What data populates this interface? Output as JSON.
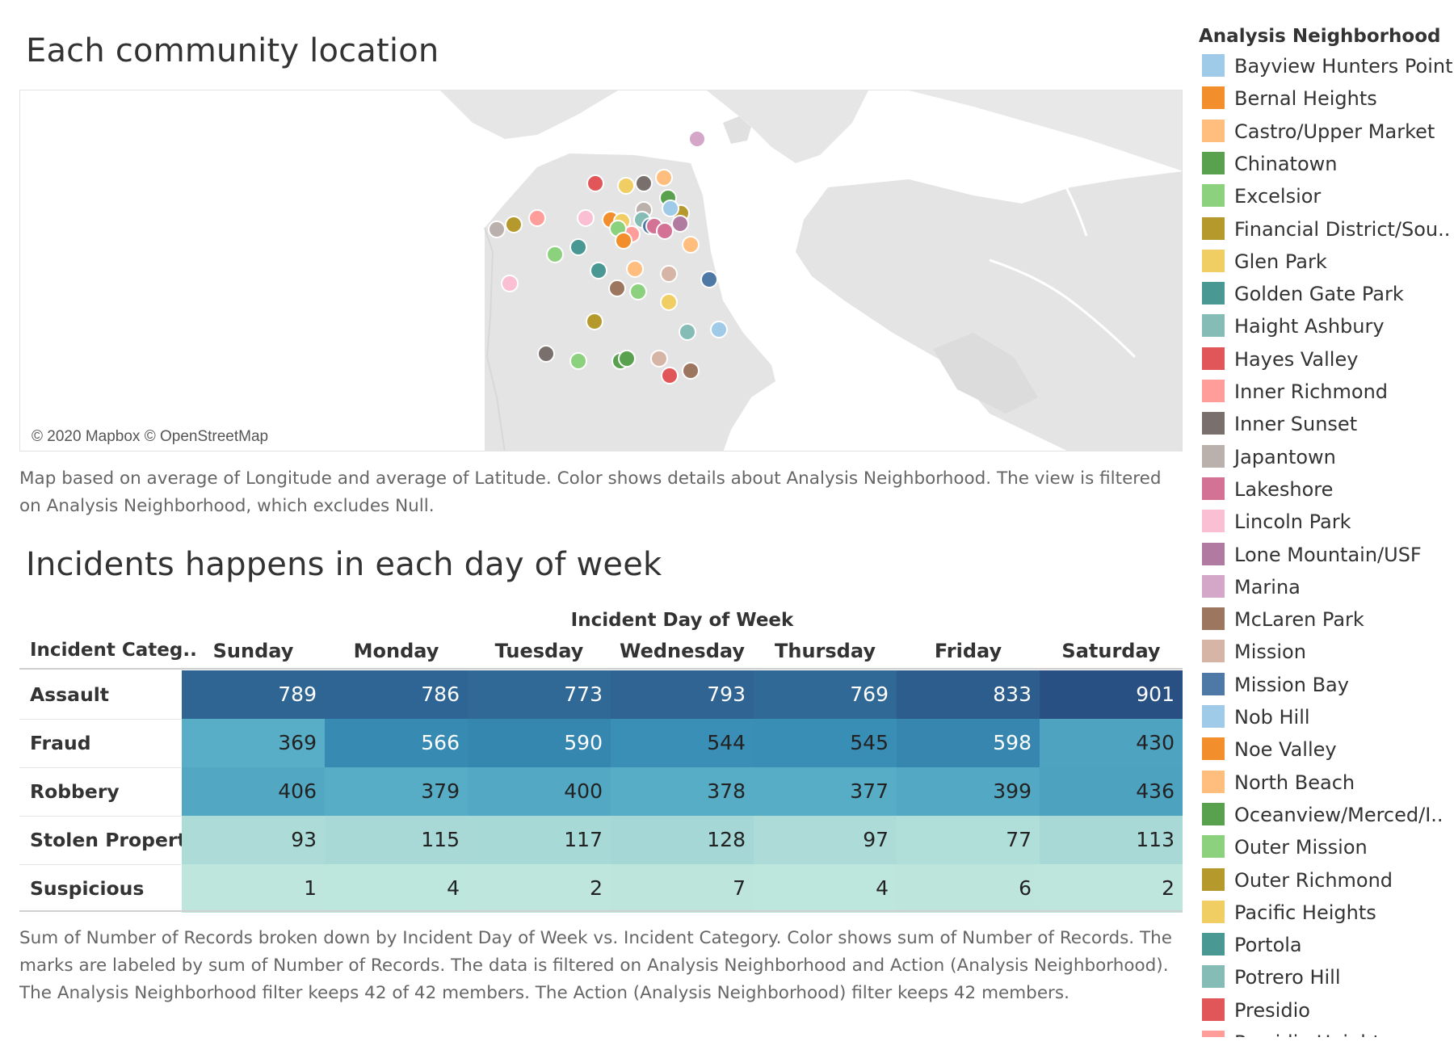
{
  "map_section": {
    "title": "Each community location",
    "attribution": "© 2020 Mapbox © OpenStreetMap",
    "caption": "Map based on average of Longitude and average of Latitude.  Color shows details about Analysis Neighborhood. The view is filtered on Analysis Neighborhood, which excludes Null."
  },
  "table_section": {
    "title": "Incidents happens in each day of week",
    "column_group_label": "Incident Day of Week",
    "row_header_label": "Incident Categ..",
    "caption": "Sum of Number of Records broken down by Incident Day of Week vs. Incident Category.  Color shows sum of Number of Records.  The marks are labeled by sum of Number of Records. The data is filtered on Analysis Neighborhood and Action (Analysis Neighborhood). The Analysis Neighborhood filter keeps 42 of 42 members. The Action (Analysis Neighborhood) filter keeps 42 members."
  },
  "chart_data": {
    "type": "heatmap",
    "columns": [
      "Sunday",
      "Monday",
      "Tuesday",
      "Wednesday",
      "Thursday",
      "Friday",
      "Saturday"
    ],
    "rows": [
      {
        "category": "Assault",
        "values": [
          789,
          786,
          773,
          793,
          769,
          833,
          901
        ]
      },
      {
        "category": "Fraud",
        "values": [
          369,
          566,
          590,
          544,
          545,
          598,
          430
        ]
      },
      {
        "category": "Robbery",
        "values": [
          406,
          379,
          400,
          378,
          377,
          399,
          436
        ]
      },
      {
        "category": "Stolen Property",
        "values": [
          93,
          115,
          117,
          128,
          97,
          77,
          113
        ]
      },
      {
        "category": "Suspicious",
        "values": [
          1,
          4,
          2,
          7,
          4,
          6,
          2
        ]
      }
    ]
  },
  "legend": {
    "title": "Analysis Neighborhood",
    "items": [
      {
        "label": "Bayview Hunters Point",
        "color": "#a0cbe8"
      },
      {
        "label": "Bernal Heights",
        "color": "#f28e2b"
      },
      {
        "label": "Castro/Upper Market",
        "color": "#ffbe7d"
      },
      {
        "label": "Chinatown",
        "color": "#59a14f"
      },
      {
        "label": "Excelsior",
        "color": "#8cd17d"
      },
      {
        "label": "Financial District/Sou..",
        "color": "#b6992d"
      },
      {
        "label": "Glen Park",
        "color": "#f1ce63"
      },
      {
        "label": "Golden Gate Park",
        "color": "#499894"
      },
      {
        "label": "Haight Ashbury",
        "color": "#86bcb6"
      },
      {
        "label": "Hayes Valley",
        "color": "#e15759"
      },
      {
        "label": "Inner Richmond",
        "color": "#ff9d9a"
      },
      {
        "label": "Inner Sunset",
        "color": "#79706e"
      },
      {
        "label": "Japantown",
        "color": "#bab0ac"
      },
      {
        "label": "Lakeshore",
        "color": "#d37295"
      },
      {
        "label": "Lincoln Park",
        "color": "#fabfd2"
      },
      {
        "label": "Lone Mountain/USF",
        "color": "#b07aa1"
      },
      {
        "label": "Marina",
        "color": "#d4a6c8"
      },
      {
        "label": "McLaren Park",
        "color": "#9d7660"
      },
      {
        "label": "Mission",
        "color": "#d7b5a6"
      },
      {
        "label": "Mission Bay",
        "color": "#4e79a7"
      },
      {
        "label": "Nob Hill",
        "color": "#a0cbe8"
      },
      {
        "label": "Noe Valley",
        "color": "#f28e2b"
      },
      {
        "label": "North Beach",
        "color": "#ffbe7d"
      },
      {
        "label": "Oceanview/Merced/I..",
        "color": "#59a14f"
      },
      {
        "label": "Outer Mission",
        "color": "#8cd17d"
      },
      {
        "label": "Outer Richmond",
        "color": "#b6992d"
      },
      {
        "label": "Pacific Heights",
        "color": "#f1ce63"
      },
      {
        "label": "Portola",
        "color": "#499894"
      },
      {
        "label": "Potrero Hill",
        "color": "#86bcb6"
      },
      {
        "label": "Presidio",
        "color": "#e15759"
      },
      {
        "label": "Presidio Heights",
        "color": "#ff9d9a"
      }
    ]
  }
}
